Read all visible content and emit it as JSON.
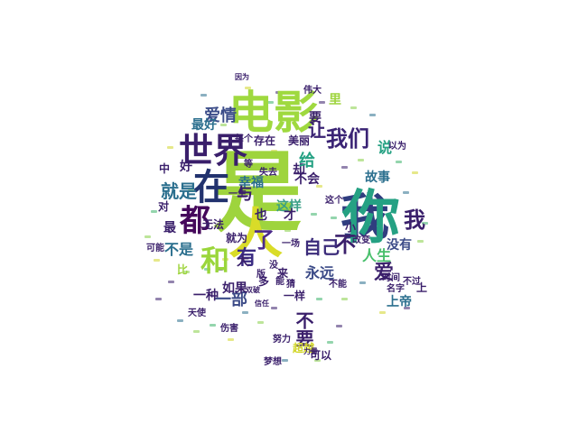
{
  "palette": {
    "teal": "#23858b",
    "purple": "#3a1f6b",
    "green": "#3cb26a",
    "yellow": "#d2d62a",
    "lime": "#86cf47",
    "blue": "#2d6f8e",
    "navy": "#37457c",
    "darkviolet": "#440154"
  },
  "words": [
    {
      "text": "是",
      "color": "#9ed43d",
      "vertical": false
    },
    {
      "text": "我",
      "color": "#2f3d7f",
      "vertical": false
    },
    {
      "text": "人",
      "color": "#d9dc28",
      "vertical": false
    },
    {
      "text": "你",
      "color": "#25a183",
      "vertical": false
    },
    {
      "text": "电影",
      "color": "#9fd93f",
      "vertical": false
    },
    {
      "text": "世界",
      "color": "#3a1f6b",
      "vertical": false
    },
    {
      "text": "在",
      "color": "#22326e",
      "vertical": false
    },
    {
      "text": "都",
      "color": "#45085b",
      "vertical": false
    },
    {
      "text": "我们",
      "color": "#3a2374",
      "vertical": false
    },
    {
      "text": "和",
      "color": "#9ad63b",
      "vertical": false
    },
    {
      "text": "我",
      "color": "#3a1f6b",
      "vertical": false
    },
    {
      "text": "爱",
      "color": "#3a1f6b",
      "vertical": false
    },
    {
      "text": "就是",
      "color": "#2b6f8e",
      "vertical": false
    },
    {
      "text": "爱情",
      "color": "#3c4d89",
      "vertical": false
    },
    {
      "text": "让",
      "color": "#3a2374",
      "vertical": false
    },
    {
      "text": "有",
      "color": "#3a2b82",
      "vertical": false
    },
    {
      "text": "了",
      "color": "#4b2a8a",
      "vertical": false
    },
    {
      "text": "不",
      "color": "#3a1f6b",
      "vertical": false
    },
    {
      "text": "自己",
      "color": "#3b2b7a",
      "vertical": false
    },
    {
      "text": "人生",
      "color": "#48bf6b",
      "vertical": false
    },
    {
      "text": "幸福",
      "color": "#2b6f8e",
      "vertical": false
    },
    {
      "text": "故事",
      "color": "#2b6f8e",
      "vertical": false
    },
    {
      "text": "永远",
      "color": "#3b4a87",
      "vertical": false
    },
    {
      "text": "没有",
      "color": "#3b4a87",
      "vertical": false
    },
    {
      "text": "不是",
      "color": "#2b6f8e",
      "vertical": false
    },
    {
      "text": "一部",
      "color": "#3b4a87",
      "vertical": false
    },
    {
      "text": "最好",
      "color": "#2b6f8e",
      "vertical": false
    },
    {
      "text": "这样",
      "color": "#3a9f86",
      "vertical": false
    },
    {
      "text": "上帝",
      "color": "#2b6f8e",
      "vertical": false
    },
    {
      "text": "不要",
      "color": "#3a1f6b",
      "vertical": true
    },
    {
      "text": "不会",
      "color": "#3a1f6b",
      "vertical": false
    },
    {
      "text": "一种",
      "color": "#3a1f6b",
      "vertical": false
    },
    {
      "text": "如果",
      "color": "#3a1f6b",
      "vertical": false
    },
    {
      "text": "无法",
      "color": "#3a1f6b",
      "vertical": false
    },
    {
      "text": "最",
      "color": "#3a1f6b",
      "vertical": false
    },
    {
      "text": "好",
      "color": "#3a1f6b",
      "vertical": false
    },
    {
      "text": "对",
      "color": "#3a1f6b",
      "vertical": false
    },
    {
      "text": "与",
      "color": "#3a1f6b",
      "vertical": false
    },
    {
      "text": "也",
      "color": "#3a1f6b",
      "vertical": false
    },
    {
      "text": "才",
      "color": "#3a1f6b",
      "vertical": false
    },
    {
      "text": "却",
      "color": "#3a1f6b",
      "vertical": false
    },
    {
      "text": "给",
      "color": "#25a183",
      "vertical": false
    },
    {
      "text": "说",
      "color": "#25a183",
      "vertical": false
    },
    {
      "text": "就为",
      "color": "#3a1f6b",
      "vertical": false
    },
    {
      "text": "大",
      "color": "#3a1f6b",
      "vertical": false
    },
    {
      "text": "比",
      "color": "#9ed43d",
      "vertical": false
    },
    {
      "text": "超越",
      "color": "#d2d62a",
      "vertical": false
    },
    {
      "text": "可以",
      "color": "#3a1f6b",
      "vertical": false
    },
    {
      "text": "一样",
      "color": "#3a1f6b",
      "vertical": false
    },
    {
      "text": "一场",
      "color": "#3a1f6b",
      "vertical": false
    },
    {
      "text": "存在",
      "color": "#3a1f6b",
      "vertical": false
    },
    {
      "text": "美丽",
      "color": "#3a1f6b",
      "vertical": false
    },
    {
      "text": "每个",
      "color": "#3a1f6b",
      "vertical": false
    },
    {
      "text": "失去",
      "color": "#3a1f6b",
      "vertical": false
    },
    {
      "text": "名字",
      "color": "#3a1f6b",
      "vertical": false
    },
    {
      "text": "不过",
      "color": "#3a1f6b",
      "vertical": false
    },
    {
      "text": "以为",
      "color": "#3a1f6b",
      "vertical": false
    },
    {
      "text": "伟大",
      "color": "#3a1f6b",
      "vertical": false
    },
    {
      "text": "要",
      "color": "#3a1f6b",
      "vertical": false
    },
    {
      "text": "里",
      "color": "#9ed43d",
      "vertical": false
    },
    {
      "text": "上",
      "color": "#3a1f6b",
      "vertical": false
    },
    {
      "text": "能",
      "color": "#3a1f6b",
      "vertical": false
    },
    {
      "text": "时间",
      "color": "#3a1f6b",
      "vertical": false
    },
    {
      "text": "没",
      "color": "#3a1f6b",
      "vertical": false
    },
    {
      "text": "改变",
      "color": "#3a1f6b",
      "vertical": false
    },
    {
      "text": "小",
      "color": "#3a1f6b",
      "vertical": false
    },
    {
      "text": "猜",
      "color": "#3a1f6b",
      "vertical": false
    },
    {
      "text": "来",
      "color": "#3a1f6b",
      "vertical": false
    },
    {
      "text": "不能",
      "color": "#3a1f6b",
      "vertical": false
    },
    {
      "text": "可能",
      "color": "#3a1f6b",
      "vertical": false
    },
    {
      "text": "天使",
      "color": "#3a1f6b",
      "vertical": false
    },
    {
      "text": "伤害",
      "color": "#3a1f6b",
      "vertical": false
    },
    {
      "text": "一生",
      "color": "#3a1f6b",
      "vertical": false
    },
    {
      "text": "版",
      "color": "#3a1f6b",
      "vertical": false
    },
    {
      "text": "因为",
      "color": "#3a1f6b",
      "vertical": false
    },
    {
      "text": "努力",
      "color": "#3a1f6b",
      "vertical": false
    },
    {
      "text": "梦想",
      "color": "#3a1f6b",
      "vertical": false
    },
    {
      "text": "力量",
      "color": "#3a1f6b",
      "vertical": false
    },
    {
      "text": "双破",
      "color": "#3a1f6b",
      "vertical": false
    },
    {
      "text": "信任",
      "color": "#3a1f6b",
      "vertical": false
    },
    {
      "text": "这个",
      "color": "#3a1f6b",
      "vertical": false
    },
    {
      "text": "多",
      "color": "#3a1f6b",
      "vertical": false
    },
    {
      "text": "中",
      "color": "#3a1f6b",
      "vertical": false
    },
    {
      "text": "等",
      "color": "#3a1f6b",
      "vertical": false
    }
  ]
}
